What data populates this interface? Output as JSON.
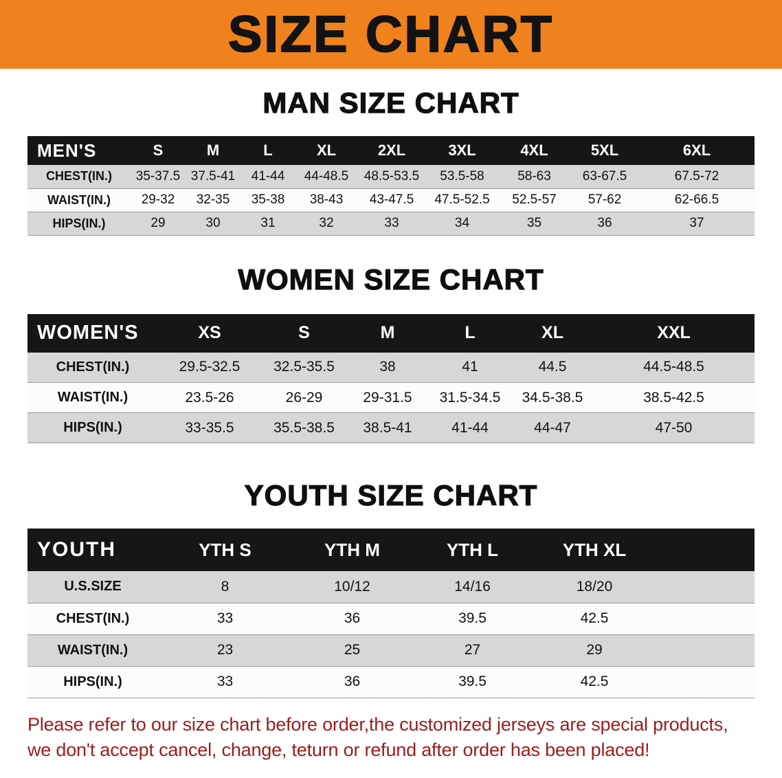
{
  "banner": {
    "title": "SIZE CHART"
  },
  "colors": {
    "banner_bg": "#f0821e",
    "band_bg": "#161616",
    "row_alt": "#d7d7d7",
    "row_main": "#fcfcfc",
    "rule": "#9a9a9a",
    "footer_red": "#9b1c1c",
    "text": "#111111"
  },
  "sections": [
    {
      "id": "men",
      "title": "MAN SIZE CHART",
      "label": "MEN'S",
      "columns": [
        "S",
        "M",
        "L",
        "XL",
        "2XL",
        "3XL",
        "4XL",
        "5XL",
        "6XL"
      ],
      "rows": [
        {
          "label": "CHEST(IN.)",
          "values": [
            "35-37.5",
            "37.5-41",
            "41-44",
            "44-48.5",
            "48.5-53.5",
            "53.5-58",
            "58-63",
            "63-67.5",
            "67.5-72"
          ]
        },
        {
          "label": "WAIST(IN.)",
          "values": [
            "29-32",
            "32-35",
            "35-38",
            "38-43",
            "43-47.5",
            "47.5-52.5",
            "52.5-57",
            "57-62",
            "62-66.5"
          ]
        },
        {
          "label": "HIPS(IN.)",
          "values": [
            "29",
            "30",
            "31",
            "32",
            "33",
            "34",
            "35",
            "36",
            "37"
          ]
        }
      ]
    },
    {
      "id": "women",
      "title": "WOMEN SIZE CHART",
      "label": "WOMEN'S",
      "columns": [
        "XS",
        "S",
        "M",
        "L",
        "XL",
        "XXL"
      ],
      "rows": [
        {
          "label": "CHEST(IN.)",
          "values": [
            "29.5-32.5",
            "32.5-35.5",
            "38",
            "41",
            "44.5",
            "44.5-48.5"
          ]
        },
        {
          "label": "WAIST(IN.)",
          "values": [
            "23.5-26",
            "26-29",
            "29-31.5",
            "31.5-34.5",
            "34.5-38.5",
            "38.5-42.5"
          ]
        },
        {
          "label": "HIPS(IN.)",
          "values": [
            "33-35.5",
            "35.5-38.5",
            "38.5-41",
            "41-44",
            "44-47",
            "47-50"
          ]
        }
      ]
    },
    {
      "id": "youth",
      "title": "YOUTH SIZE CHART",
      "label": "YOUTH",
      "columns": [
        "YTH S",
        "YTH M",
        "YTH L",
        "YTH XL"
      ],
      "rows": [
        {
          "label": "U.S.SIZE",
          "values": [
            "8",
            "10/12",
            "14/16",
            "18/20"
          ]
        },
        {
          "label": "CHEST(IN.)",
          "values": [
            "33",
            "36",
            "39.5",
            "42.5"
          ]
        },
        {
          "label": "WAIST(IN.)",
          "values": [
            "23",
            "25",
            "27",
            "29"
          ]
        },
        {
          "label": "HIPS(IN.)",
          "values": [
            "33",
            "36",
            "39.5",
            "42.5"
          ]
        }
      ]
    }
  ],
  "footer": {
    "line1": "Please refer to our size chart before order,the customized jerseys are special products,",
    "line2": "we don't accept cancel, change, teturn or refund after order has been placed!"
  }
}
